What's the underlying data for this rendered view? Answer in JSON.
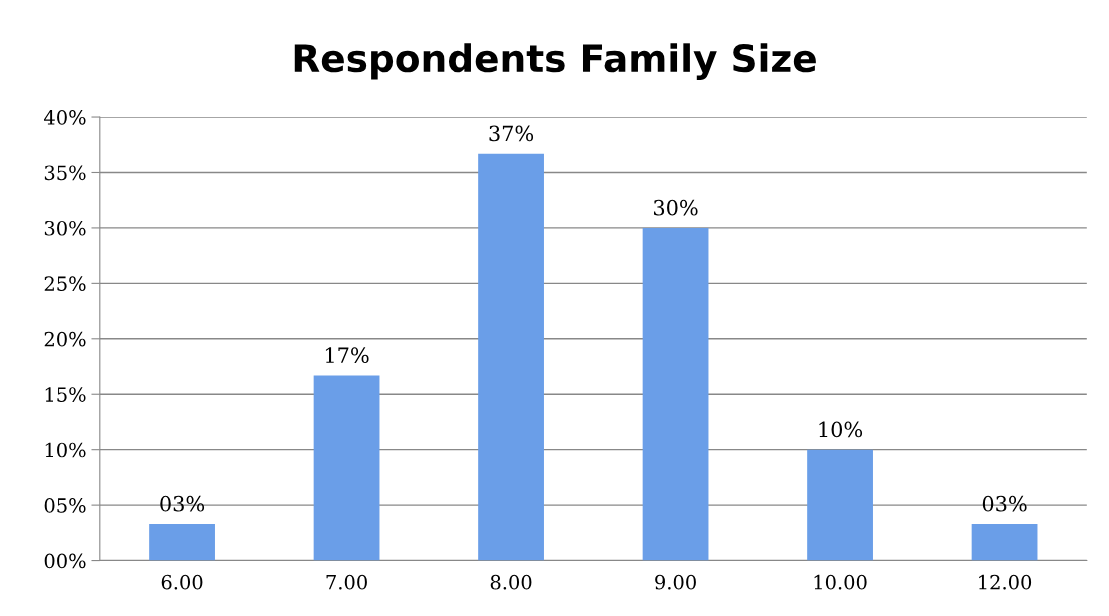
{
  "chart_data": {
    "type": "bar",
    "title": "Respondents Family Size",
    "categories": [
      "6.00",
      "7.00",
      "8.00",
      "9.00",
      "10.00",
      "12.00"
    ],
    "values": [
      3.3,
      16.7,
      36.7,
      30,
      10,
      3.3
    ],
    "value_labels": [
      "03%",
      "17%",
      "37%",
      "30%",
      "10%",
      "03%"
    ],
    "color": "#6a9ee8",
    "ylim": [
      0,
      40
    ],
    "yticks": [
      {
        "value": 0,
        "label": "00%"
      },
      {
        "value": 5,
        "label": "05%"
      },
      {
        "value": 10,
        "label": "10%"
      },
      {
        "value": 15,
        "label": "15%"
      },
      {
        "value": 20,
        "label": "20%"
      },
      {
        "value": 25,
        "label": "25%"
      },
      {
        "value": 30,
        "label": "30%"
      },
      {
        "value": 35,
        "label": "35%"
      },
      {
        "value": 40,
        "label": "40%"
      }
    ],
    "grid": "y"
  }
}
